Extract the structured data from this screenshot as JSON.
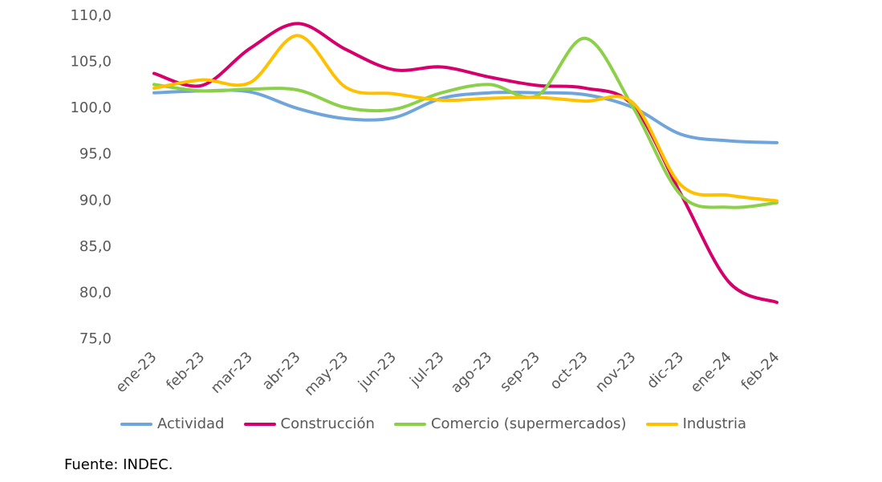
{
  "chart_data": {
    "type": "line",
    "categories": [
      "ene-23",
      "feb-23",
      "mar-23",
      "abr-23",
      "may-23",
      "jun-23",
      "jul-23",
      "ago-23",
      "sep-23",
      "oct-23",
      "nov-23",
      "dic-23",
      "ene-24",
      "feb-24"
    ],
    "series": [
      {
        "name": "Actividad",
        "color": "#6FA5DB",
        "values": [
          101.6,
          101.8,
          101.7,
          99.9,
          98.8,
          98.9,
          101.0,
          101.6,
          101.6,
          101.4,
          100.0,
          97.1,
          96.4,
          96.2
        ]
      },
      {
        "name": "Construcción",
        "color": "#D6006C",
        "values": [
          103.7,
          102.4,
          106.4,
          109.1,
          106.3,
          104.1,
          104.4,
          103.3,
          102.4,
          102.1,
          100.2,
          90.6,
          81.1,
          78.9
        ]
      },
      {
        "name": "Comercio (supermercados)",
        "color": "#8CD04A",
        "values": [
          102.5,
          101.8,
          102.0,
          101.9,
          100.0,
          99.8,
          101.6,
          102.5,
          101.3,
          107.5,
          100.0,
          90.5,
          89.2,
          89.7
        ]
      },
      {
        "name": "Industria",
        "color": "#FFC000",
        "values": [
          102.1,
          103.0,
          102.7,
          107.8,
          102.2,
          101.5,
          100.8,
          101.0,
          101.1,
          100.7,
          100.5,
          91.6,
          90.5,
          89.9
        ]
      }
    ],
    "ylim": [
      75,
      110
    ],
    "yticks": [
      "75,0",
      "80,0",
      "85,0",
      "90,0",
      "95,0",
      "100,0",
      "105,0",
      "110,0"
    ],
    "grid": false,
    "legend_position": "bottom"
  },
  "source": "Fuente: INDEC."
}
